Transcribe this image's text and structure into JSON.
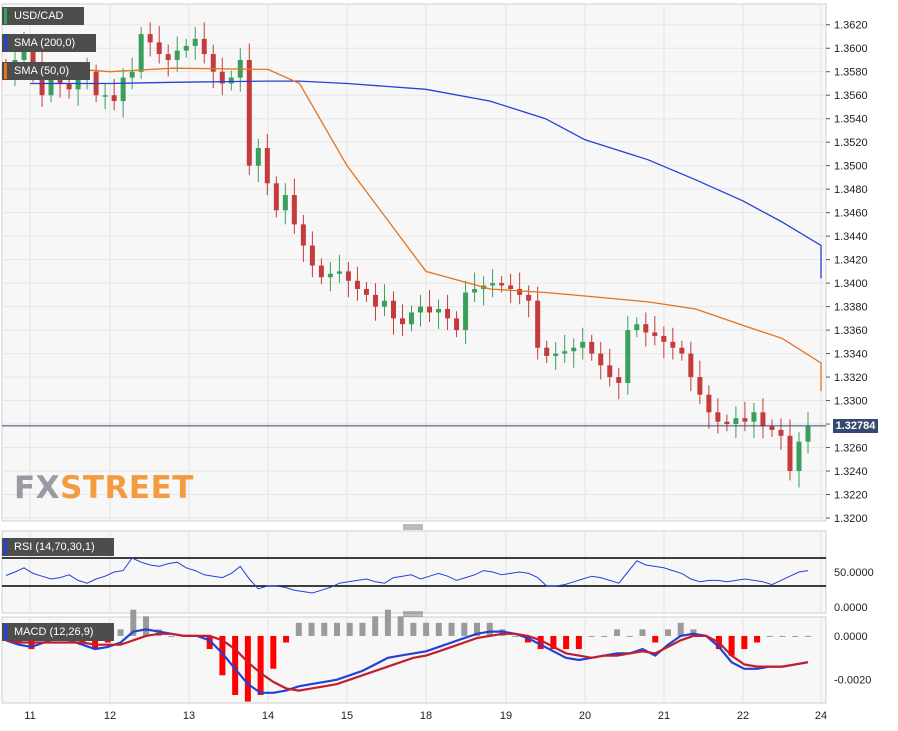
{
  "chart_data": [
    {
      "type": "candlestick",
      "symbol": "USD/CAD",
      "ylim": [
        1.32,
        1.363
      ],
      "yticks": [
        "1.3620",
        "1.3600",
        "1.3580",
        "1.3560",
        "1.3540",
        "1.3520",
        "1.3500",
        "1.3480",
        "1.3460",
        "1.3440",
        "1.3420",
        "1.3400",
        "1.3380",
        "1.3360",
        "1.3340",
        "1.3320",
        "1.3300",
        "1.3280",
        "1.3260",
        "1.3240",
        "1.3220",
        "1.3200"
      ],
      "xticks": [
        "11",
        "12",
        "13",
        "14",
        "15",
        "18",
        "19",
        "20",
        "21",
        "22",
        "24"
      ],
      "last_price": "1.32784",
      "legend": {
        "symbol_label": "USD/CAD",
        "sma200_label": "SMA (200,0)",
        "sma50_label": "SMA (50,0)"
      },
      "sma200_color": "#2341d6",
      "sma50_color": "#e3731f",
      "up_color": "#3a9f5a",
      "down_color": "#c43b3b",
      "series": [
        {
          "name": "SMA (200,0)",
          "values": [
            1.357,
            1.357,
            1.3571,
            1.3572,
            1.3572,
            1.357,
            1.3565,
            1.3555,
            1.354,
            1.3522,
            1.3505,
            1.3488,
            1.347,
            1.3452,
            1.3432,
            1.3404
          ]
        },
        {
          "name": "SMA (50,0)",
          "values": [
            1.3585,
            1.358,
            1.3583,
            1.3582,
            1.357,
            1.35,
            1.341,
            1.3395,
            1.3392,
            1.3389,
            1.3384,
            1.3378,
            1.3364,
            1.3353,
            1.3332,
            1.3308
          ]
        }
      ],
      "sma_x": [
        0.0,
        1.0,
        1.8,
        3.0,
        3.4,
        4.0,
        5.0,
        5.8,
        6.5,
        7.0,
        7.8,
        8.4,
        9.0,
        9.5,
        10.0,
        10.3
      ],
      "close": [
        1.358,
        1.359,
        1.36,
        1.3585,
        1.356,
        1.3575,
        1.357,
        1.3565,
        1.3575,
        1.358,
        1.356,
        1.356,
        1.3555,
        1.3575,
        1.358,
        1.3612,
        1.3605,
        1.3595,
        1.359,
        1.3598,
        1.3602,
        1.3608,
        1.3595,
        1.358,
        1.357,
        1.3575,
        1.359,
        1.35,
        1.3515,
        1.3485,
        1.3462,
        1.3475,
        1.345,
        1.3432,
        1.3415,
        1.3405,
        1.3408,
        1.341,
        1.3402,
        1.3395,
        1.339,
        1.338,
        1.3385,
        1.337,
        1.3365,
        1.3375,
        1.338,
        1.3375,
        1.3378,
        1.337,
        1.336,
        1.3392,
        1.3395,
        1.3398,
        1.34,
        1.3398,
        1.3395,
        1.339,
        1.3385,
        1.3345,
        1.3338,
        1.334,
        1.3342,
        1.3345,
        1.335,
        1.334,
        1.333,
        1.332,
        1.3315,
        1.336,
        1.3365,
        1.3358,
        1.3355,
        1.335,
        1.3345,
        1.334,
        1.332,
        1.3305,
        1.329,
        1.3282,
        1.328,
        1.3285,
        1.3282,
        1.329,
        1.3278,
        1.3275,
        1.327,
        1.324,
        1.3265,
        1.3278
      ],
      "rsi": {
        "label": "RSI (14,70,30,1)",
        "ylim": [
          0,
          100
        ],
        "upper": 70,
        "lower": 30,
        "yticks": [
          "50.0000",
          "0.0000"
        ],
        "color": "#2341d6",
        "values": [
          45,
          50,
          56,
          48,
          44,
          40,
          42,
          46,
          38,
          34,
          40,
          44,
          50,
          52,
          70,
          64,
          60,
          58,
          62,
          64,
          56,
          52,
          46,
          44,
          42,
          48,
          58,
          40,
          26,
          30,
          30,
          28,
          24,
          22,
          20,
          24,
          28,
          34,
          36,
          38,
          40,
          36,
          34,
          42,
          44,
          46,
          40,
          44,
          48,
          44,
          38,
          42,
          46,
          52,
          50,
          46,
          48,
          50,
          48,
          42,
          30,
          30,
          32,
          36,
          40,
          44,
          42,
          38,
          34,
          50,
          66,
          60,
          58,
          56,
          52,
          48,
          40,
          36,
          38,
          38,
          36,
          38,
          40,
          38,
          36,
          32,
          38,
          44,
          50,
          52
        ]
      },
      "macd": {
        "label": "MACD (12,26,9)",
        "ylim": [
          -0.0027,
          0.0005
        ],
        "yticks": [
          "0.0000",
          "-0.0020"
        ],
        "macd_color": "#2341d6",
        "signal_color": "#c21f2c",
        "hist_pos_color": "#9a9a9a",
        "hist_neg_color": "#ff0000",
        "macd_values": [
          -0.0002,
          -0.0004,
          -0.0005,
          -0.0003,
          -0.0001,
          -0.0002,
          -0.0004,
          -0.0006,
          -0.0005,
          -0.0003,
          0.0002,
          0.0003,
          0.0002,
          0.0001,
          0.0,
          0.0,
          -0.0002,
          -0.0008,
          -0.0015,
          -0.0022,
          -0.0026,
          -0.0026,
          -0.0025,
          -0.0023,
          -0.0022,
          -0.0021,
          -0.002,
          -0.0018,
          -0.0016,
          -0.0013,
          -0.001,
          -0.0009,
          -0.0008,
          -0.0007,
          -0.0005,
          -0.0003,
          -0.0001,
          0.0001,
          0.0002,
          0.0002,
          0.0001,
          -0.0001,
          -0.0004,
          -0.0007,
          -0.001,
          -0.0011,
          -0.001,
          -0.0009,
          -0.0008,
          -0.0008,
          -0.0006,
          -0.0009,
          -0.0004,
          0.0,
          0.0001,
          0.0,
          -0.0005,
          -0.0012,
          -0.0015,
          -0.0015,
          -0.0014,
          -0.0014,
          -0.0013,
          -0.0012
        ],
        "signal_values": [
          -0.0002,
          -0.0003,
          -0.0003,
          -0.0003,
          -0.0003,
          -0.0003,
          -0.0003,
          -0.0004,
          -0.0004,
          -0.0004,
          -0.0002,
          0.0,
          0.0001,
          0.0001,
          0.0,
          0.0,
          0.0,
          -0.0002,
          -0.0006,
          -0.0012,
          -0.0017,
          -0.0021,
          -0.0024,
          -0.0025,
          -0.0024,
          -0.0023,
          -0.0022,
          -0.002,
          -0.0018,
          -0.0016,
          -0.0014,
          -0.0012,
          -0.001,
          -0.0009,
          -0.0007,
          -0.0005,
          -0.0003,
          -0.0001,
          0.0,
          0.0001,
          0.0001,
          0.0,
          -0.0002,
          -0.0005,
          -0.0008,
          -0.0009,
          -0.001,
          -0.0009,
          -0.0009,
          -0.0008,
          -0.0007,
          -0.0008,
          -0.0005,
          -0.0002,
          0.0,
          0.0,
          -0.0003,
          -0.0009,
          -0.0013,
          -0.0014,
          -0.0014,
          -0.0014,
          -0.0013,
          -0.0012
        ]
      }
    }
  ]
}
